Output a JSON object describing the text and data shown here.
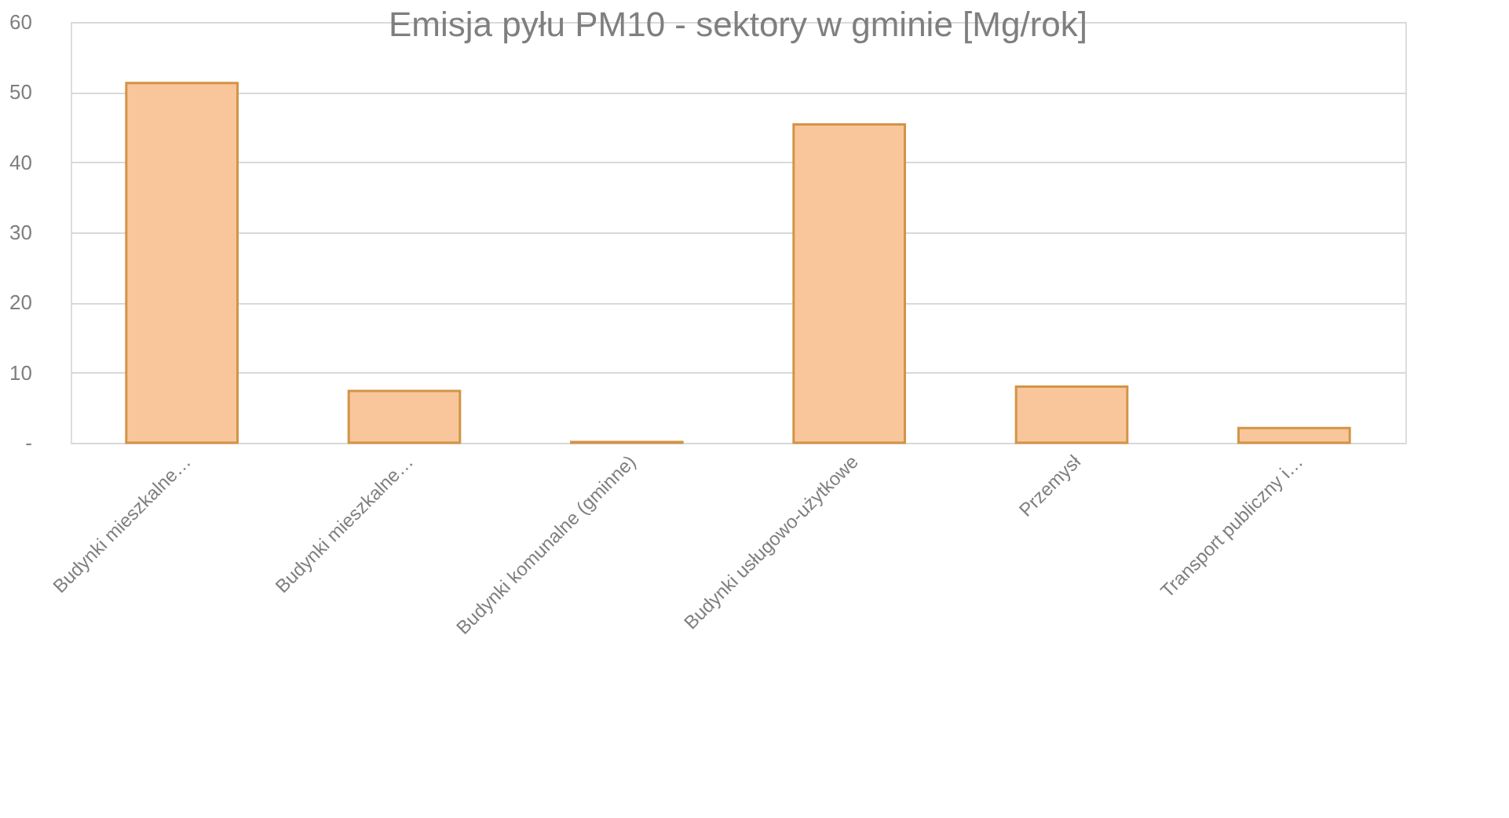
{
  "chart_data": {
    "type": "bar",
    "title": "Emisja pyłu PM10 - sektory w gminie [Mg/rok]",
    "categories": [
      "Budynki mieszkalne…",
      "Budynki mieszkalne…",
      "Budynki komunalne (gminne)",
      "Budynki usługowo-użytkowe",
      "Przemysł",
      "Transport publiczny i…"
    ],
    "values": [
      51.3,
      7.4,
      0.1,
      45.4,
      8.0,
      2.1
    ],
    "color": "#f9c69c",
    "ylim": [
      0,
      60
    ],
    "yticks": [
      {
        "value": 0,
        "label": "-"
      },
      10,
      20,
      30,
      40,
      50,
      60
    ],
    "grid": "y"
  }
}
